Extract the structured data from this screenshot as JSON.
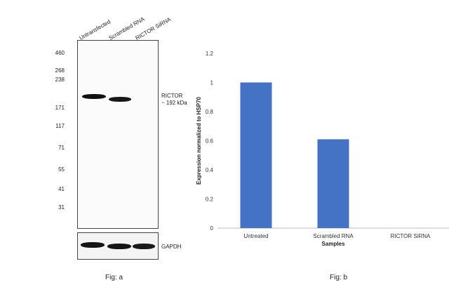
{
  "figure_a": {
    "lanes": [
      "Untransfected",
      "Scrambled RNA",
      "RICTOR SiRNA"
    ],
    "mw_markers": [
      "460",
      "268",
      "238",
      "171",
      "117",
      "71",
      "55",
      "41",
      "31"
    ],
    "target_label": "RICTOR",
    "target_size": "~ 192 kDa",
    "loading_control": "GAPDH",
    "caption": "Fig: a"
  },
  "chart_data": {
    "type": "bar",
    "categories": [
      "Untreated",
      "Scrambled RNA",
      "RICTOR SiRNA"
    ],
    "values": [
      1.0,
      0.61,
      0.0
    ],
    "xlabel": "Samples",
    "ylabel": "Expression normalized to HSP70",
    "ylim": [
      0,
      1.2
    ],
    "yticks": [
      "0",
      "0.2",
      "0.4",
      "0.6",
      "0.8",
      "1",
      "1.2"
    ],
    "grid": false,
    "bar_color": "#4472C4",
    "caption": "Fig: b"
  }
}
